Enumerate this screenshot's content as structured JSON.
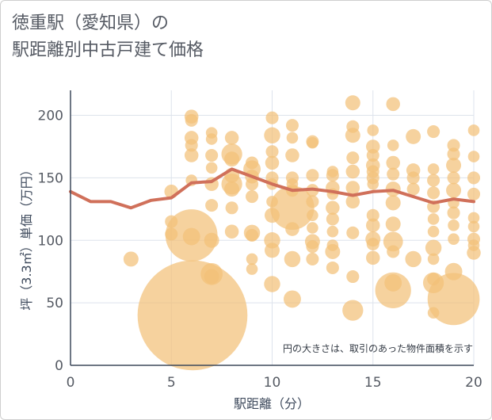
{
  "title": "徳重駅（愛知県）の\n駅距離別中古戸建て価格",
  "chart_data": {
    "type": "scatter",
    "title": "徳重駅（愛知県）の駅距離別中古戸建て価格",
    "xlabel": "駅距離（分）",
    "ylabel": "坪（3.3㎡）単価（万円）",
    "xlim": [
      0,
      20
    ],
    "ylim": [
      0,
      220
    ],
    "xticks": [
      0,
      5,
      10,
      15,
      20
    ],
    "yticks": [
      0,
      50,
      100,
      150,
      200
    ],
    "note": "円の大きさは、取引のあった物件面積を示す",
    "colors": {
      "bubble": "#f3c178",
      "line": "#d0705a",
      "grid": "#dde3ec"
    },
    "bubbles": [
      {
        "x": 3,
        "y": 85,
        "s": 1.3
      },
      {
        "x": 5,
        "y": 139,
        "s": 1.2
      },
      {
        "x": 5,
        "y": 115,
        "s": 1.1
      },
      {
        "x": 5,
        "y": 105,
        "s": 1.1
      },
      {
        "x": 6,
        "y": 199,
        "s": 1.2
      },
      {
        "x": 6,
        "y": 196,
        "s": 1.1
      },
      {
        "x": 6,
        "y": 182,
        "s": 1.2
      },
      {
        "x": 6,
        "y": 176,
        "s": 1.1
      },
      {
        "x": 6,
        "y": 168,
        "s": 1.2
      },
      {
        "x": 6,
        "y": 148,
        "s": 1.0
      },
      {
        "x": 6,
        "y": 104,
        "s": 4.5
      },
      {
        "x": 6,
        "y": 103,
        "s": 1.5
      },
      {
        "x": 6.05,
        "y": 40,
        "s": 9.5
      },
      {
        "x": 7,
        "y": 186,
        "s": 1.0
      },
      {
        "x": 7,
        "y": 181,
        "s": 1.0
      },
      {
        "x": 7,
        "y": 168,
        "s": 1.1
      },
      {
        "x": 7,
        "y": 158,
        "s": 1.0
      },
      {
        "x": 7,
        "y": 145,
        "s": 1.2
      },
      {
        "x": 7,
        "y": 128,
        "s": 1.1
      },
      {
        "x": 7,
        "y": 100,
        "s": 1.3
      },
      {
        "x": 7,
        "y": 73,
        "s": 1.9
      },
      {
        "x": 7,
        "y": 71,
        "s": 1.3
      },
      {
        "x": 8,
        "y": 182,
        "s": 1.2
      },
      {
        "x": 8,
        "y": 169,
        "s": 1.8
      },
      {
        "x": 8,
        "y": 165,
        "s": 1.3
      },
      {
        "x": 8,
        "y": 152,
        "s": 1.3
      },
      {
        "x": 8,
        "y": 145,
        "s": 1.8
      },
      {
        "x": 8,
        "y": 141,
        "s": 1.3
      },
      {
        "x": 8,
        "y": 126,
        "s": 1.1
      },
      {
        "x": 8,
        "y": 107,
        "s": 1.2
      },
      {
        "x": 9,
        "y": 162,
        "s": 1.1
      },
      {
        "x": 9,
        "y": 157,
        "s": 1.5
      },
      {
        "x": 9,
        "y": 151,
        "s": 1.2
      },
      {
        "x": 9,
        "y": 145,
        "s": 1.1
      },
      {
        "x": 9,
        "y": 135,
        "s": 1.1
      },
      {
        "x": 9,
        "y": 106,
        "s": 1.4
      },
      {
        "x": 9,
        "y": 104,
        "s": 1.1
      },
      {
        "x": 9,
        "y": 85,
        "s": 1.0
      },
      {
        "x": 9,
        "y": 77,
        "s": 1.0
      },
      {
        "x": 10,
        "y": 198,
        "s": 1.1
      },
      {
        "x": 10,
        "y": 184,
        "s": 1.4
      },
      {
        "x": 10,
        "y": 171,
        "s": 1.1
      },
      {
        "x": 10,
        "y": 162,
        "s": 1.2
      },
      {
        "x": 10,
        "y": 150,
        "s": 1.1
      },
      {
        "x": 10,
        "y": 145,
        "s": 1.0
      },
      {
        "x": 10,
        "y": 131,
        "s": 1.0
      },
      {
        "x": 10,
        "y": 120,
        "s": 1.3
      },
      {
        "x": 10,
        "y": 100,
        "s": 1.4
      },
      {
        "x": 10,
        "y": 92,
        "s": 1.3
      },
      {
        "x": 10,
        "y": 65,
        "s": 1.4
      },
      {
        "x": 11,
        "y": 192,
        "s": 1.1
      },
      {
        "x": 11,
        "y": 182,
        "s": 1.0
      },
      {
        "x": 11,
        "y": 168,
        "s": 1.2
      },
      {
        "x": 11,
        "y": 150,
        "s": 1.1
      },
      {
        "x": 11,
        "y": 145,
        "s": 1.0
      },
      {
        "x": 11,
        "y": 140,
        "s": 1.1
      },
      {
        "x": 11,
        "y": 126,
        "s": 3.8
      },
      {
        "x": 11,
        "y": 109,
        "s": 1.2
      },
      {
        "x": 11,
        "y": 85,
        "s": 1.4
      },
      {
        "x": 11,
        "y": 53,
        "s": 1.5
      },
      {
        "x": 12,
        "y": 179,
        "s": 1.1
      },
      {
        "x": 12,
        "y": 178,
        "s": 1.0
      },
      {
        "x": 12,
        "y": 152,
        "s": 1.1
      },
      {
        "x": 12,
        "y": 140,
        "s": 1.1
      },
      {
        "x": 12,
        "y": 131,
        "s": 1.1
      },
      {
        "x": 12,
        "y": 120,
        "s": 1.0
      },
      {
        "x": 12,
        "y": 110,
        "s": 1.0
      },
      {
        "x": 12,
        "y": 99,
        "s": 1.3
      },
      {
        "x": 12,
        "y": 95,
        "s": 1.1
      },
      {
        "x": 12,
        "y": 85,
        "s": 1.1
      },
      {
        "x": 13,
        "y": 155,
        "s": 1.0
      },
      {
        "x": 13,
        "y": 152,
        "s": 1.1
      },
      {
        "x": 13,
        "y": 142,
        "s": 1.2
      },
      {
        "x": 13,
        "y": 137,
        "s": 1.0
      },
      {
        "x": 13,
        "y": 126,
        "s": 1.2
      },
      {
        "x": 13,
        "y": 117,
        "s": 1.1
      },
      {
        "x": 13,
        "y": 107,
        "s": 1.0
      },
      {
        "x": 13,
        "y": 96,
        "s": 1.0
      },
      {
        "x": 13,
        "y": 91,
        "s": 1.3
      },
      {
        "x": 13,
        "y": 78,
        "s": 1.1
      },
      {
        "x": 14,
        "y": 210,
        "s": 1.3
      },
      {
        "x": 14,
        "y": 191,
        "s": 1.1
      },
      {
        "x": 14,
        "y": 184,
        "s": 1.3
      },
      {
        "x": 14,
        "y": 166,
        "s": 1.1
      },
      {
        "x": 14,
        "y": 155,
        "s": 1.2
      },
      {
        "x": 14,
        "y": 142,
        "s": 1.2
      },
      {
        "x": 14,
        "y": 131,
        "s": 1.2
      },
      {
        "x": 14,
        "y": 106,
        "s": 1.1
      },
      {
        "x": 14,
        "y": 71,
        "s": 1.1
      },
      {
        "x": 14,
        "y": 44,
        "s": 1.8
      },
      {
        "x": 15,
        "y": 188,
        "s": 1.0
      },
      {
        "x": 15,
        "y": 175,
        "s": 1.2
      },
      {
        "x": 15,
        "y": 168,
        "s": 1.1
      },
      {
        "x": 15,
        "y": 160,
        "s": 1.2
      },
      {
        "x": 15,
        "y": 155,
        "s": 1.1
      },
      {
        "x": 15,
        "y": 150,
        "s": 1.1
      },
      {
        "x": 15,
        "y": 145,
        "s": 1.0
      },
      {
        "x": 15,
        "y": 120,
        "s": 1.1
      },
      {
        "x": 15,
        "y": 112,
        "s": 1.2
      },
      {
        "x": 15,
        "y": 101,
        "s": 1.3
      },
      {
        "x": 15,
        "y": 97,
        "s": 1.1
      },
      {
        "x": 15,
        "y": 86,
        "s": 1.2
      },
      {
        "x": 16,
        "y": 209,
        "s": 1.2
      },
      {
        "x": 16,
        "y": 176,
        "s": 1.0
      },
      {
        "x": 16,
        "y": 162,
        "s": 1.2
      },
      {
        "x": 16,
        "y": 153,
        "s": 1.1
      },
      {
        "x": 16,
        "y": 141,
        "s": 1.3
      },
      {
        "x": 16,
        "y": 130,
        "s": 1.3
      },
      {
        "x": 16,
        "y": 113,
        "s": 1.3
      },
      {
        "x": 16,
        "y": 99,
        "s": 1.7
      },
      {
        "x": 16,
        "y": 91,
        "s": 1.1
      },
      {
        "x": 16,
        "y": 66,
        "s": 1.5
      },
      {
        "x": 16,
        "y": 60,
        "s": 3.1
      },
      {
        "x": 17,
        "y": 183,
        "s": 1.3
      },
      {
        "x": 17,
        "y": 156,
        "s": 1.2
      },
      {
        "x": 17,
        "y": 150,
        "s": 1.1
      },
      {
        "x": 17,
        "y": 141,
        "s": 1.1
      },
      {
        "x": 17,
        "y": 85,
        "s": 1.4
      },
      {
        "x": 18,
        "y": 187,
        "s": 1.1
      },
      {
        "x": 18,
        "y": 157,
        "s": 1.0
      },
      {
        "x": 18,
        "y": 148,
        "s": 1.1
      },
      {
        "x": 18,
        "y": 138,
        "s": 1.1
      },
      {
        "x": 18,
        "y": 127,
        "s": 1.1
      },
      {
        "x": 18,
        "y": 117,
        "s": 1.0
      },
      {
        "x": 18,
        "y": 107,
        "s": 1.0
      },
      {
        "x": 18,
        "y": 94,
        "s": 1.4
      },
      {
        "x": 18,
        "y": 85,
        "s": 1.0
      },
      {
        "x": 18,
        "y": 69,
        "s": 1.1
      },
      {
        "x": 18,
        "y": 66,
        "s": 1.8
      },
      {
        "x": 18,
        "y": 42,
        "s": 1.0
      },
      {
        "x": 19,
        "y": 176,
        "s": 1.1
      },
      {
        "x": 19,
        "y": 169,
        "s": 1.1
      },
      {
        "x": 19,
        "y": 160,
        "s": 1.3
      },
      {
        "x": 19,
        "y": 150,
        "s": 1.1
      },
      {
        "x": 19,
        "y": 140,
        "s": 1.3
      },
      {
        "x": 19,
        "y": 130,
        "s": 1.0
      },
      {
        "x": 19,
        "y": 122,
        "s": 1.1
      },
      {
        "x": 19,
        "y": 112,
        "s": 1.0
      },
      {
        "x": 19,
        "y": 101,
        "s": 1.0
      },
      {
        "x": 19,
        "y": 75,
        "s": 1.5
      },
      {
        "x": 19,
        "y": 53,
        "s": 4.5
      },
      {
        "x": 20,
        "y": 188,
        "s": 1.0
      },
      {
        "x": 20,
        "y": 167,
        "s": 1.0
      },
      {
        "x": 20,
        "y": 150,
        "s": 1.1
      },
      {
        "x": 20,
        "y": 137,
        "s": 1.1
      },
      {
        "x": 20,
        "y": 118,
        "s": 1.0
      },
      {
        "x": 20,
        "y": 111,
        "s": 1.0
      },
      {
        "x": 20,
        "y": 101,
        "s": 1.1
      },
      {
        "x": 20,
        "y": 96,
        "s": 1.0
      },
      {
        "x": 20,
        "y": 90,
        "s": 1.2
      }
    ],
    "line": {
      "x": [
        0,
        1,
        2,
        3,
        4,
        5,
        6,
        7,
        8,
        9,
        10,
        11,
        12,
        13,
        14,
        15,
        16,
        17,
        18,
        19,
        20
      ],
      "y": [
        139,
        131,
        131,
        126,
        132,
        134,
        146,
        147,
        157,
        151,
        145,
        140,
        141,
        139,
        136,
        139,
        140,
        135,
        130,
        133,
        131
      ]
    }
  }
}
